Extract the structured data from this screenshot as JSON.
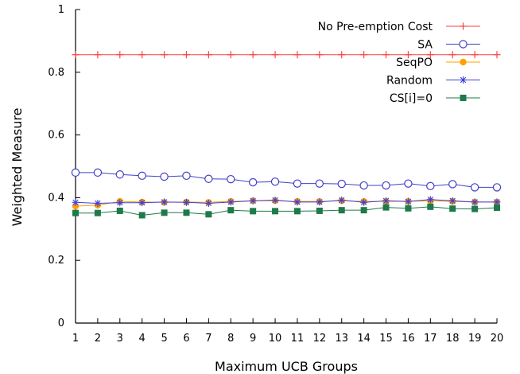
{
  "chart_data": {
    "type": "line",
    "title": "",
    "xlabel": "Maximum UCB Groups",
    "ylabel": "Weighted Measure",
    "x": [
      1,
      2,
      3,
      4,
      5,
      6,
      7,
      8,
      9,
      10,
      11,
      12,
      13,
      14,
      15,
      16,
      17,
      18,
      19,
      20
    ],
    "xlim": [
      1,
      20
    ],
    "ylim": [
      0,
      1
    ],
    "xticks": [
      "1",
      "2",
      "3",
      "4",
      "5",
      "6",
      "7",
      "8",
      "9",
      "10",
      "11",
      "12",
      "13",
      "14",
      "15",
      "16",
      "17",
      "18",
      "19",
      "20"
    ],
    "yticks": [
      {
        "value": 0,
        "label": "0"
      },
      {
        "value": 0.2,
        "label": "0.2"
      },
      {
        "value": 0.4,
        "label": "0.4"
      },
      {
        "value": 0.6,
        "label": "0.6"
      },
      {
        "value": 0.8,
        "label": "0.8"
      },
      {
        "value": 1,
        "label": "1"
      }
    ],
    "grid": false,
    "legend_position": "top-right",
    "series": [
      {
        "name": "No Pre-emption Cost",
        "color": "#ff4040",
        "marker": "plus",
        "values": [
          0.856,
          0.856,
          0.856,
          0.856,
          0.856,
          0.856,
          0.856,
          0.856,
          0.856,
          0.856,
          0.856,
          0.856,
          0.856,
          0.856,
          0.856,
          0.856,
          0.856,
          0.856,
          0.856,
          0.856
        ]
      },
      {
        "name": "SA",
        "color": "#4040c8",
        "marker": "circle-open",
        "values": [
          0.48,
          0.48,
          0.474,
          0.47,
          0.467,
          0.47,
          0.46,
          0.459,
          0.449,
          0.451,
          0.445,
          0.445,
          0.444,
          0.439,
          0.439,
          0.445,
          0.437,
          0.443,
          0.433,
          0.433
        ]
      },
      {
        "name": "SeqPO",
        "color": "#ffa000",
        "marker": "circle-filled",
        "values": [
          0.373,
          0.376,
          0.388,
          0.386,
          0.385,
          0.386,
          0.385,
          0.388,
          0.39,
          0.39,
          0.388,
          0.388,
          0.39,
          0.388,
          0.388,
          0.388,
          0.39,
          0.388,
          0.386,
          0.386
        ]
      },
      {
        "name": "Random",
        "color": "#4040e0",
        "marker": "asterisk",
        "values": [
          0.385,
          0.382,
          0.384,
          0.384,
          0.386,
          0.385,
          0.382,
          0.386,
          0.39,
          0.392,
          0.386,
          0.386,
          0.392,
          0.385,
          0.39,
          0.388,
          0.394,
          0.39,
          0.386,
          0.386
        ]
      },
      {
        "name": "CS[i]=0",
        "color": "#1e7a4a",
        "marker": "square-filled",
        "values": [
          0.351,
          0.351,
          0.358,
          0.344,
          0.352,
          0.352,
          0.347,
          0.36,
          0.357,
          0.357,
          0.357,
          0.358,
          0.36,
          0.36,
          0.369,
          0.366,
          0.371,
          0.365,
          0.364,
          0.368
        ]
      }
    ]
  }
}
